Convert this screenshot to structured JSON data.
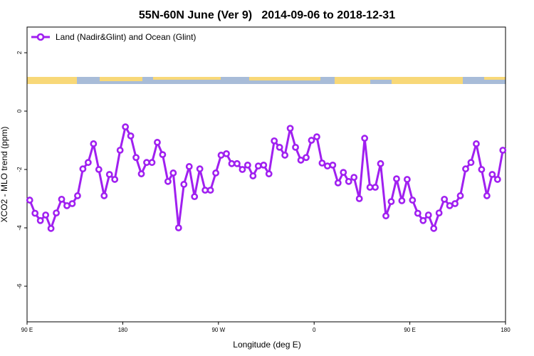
{
  "chart_data": {
    "type": "line",
    "title": "55N-60N June (Ver 9)   2014-09-06 to 2018-12-31",
    "x_label": "Longitude (deg E)",
    "y_label": "XCO2 - MLO trend (ppm)",
    "xlim": [
      90,
      540
    ],
    "xticks": [
      {
        "value": 90,
        "label": "90 E"
      },
      {
        "value": 180,
        "label": "180"
      },
      {
        "value": 270,
        "label": "90 W"
      },
      {
        "value": 360,
        "label": "0"
      },
      {
        "value": 450,
        "label": "90 E"
      },
      {
        "value": 540,
        "label": "180"
      }
    ],
    "ylim": [
      -7.22,
      2.88
    ],
    "yticks": [
      2,
      0,
      -2,
      -4,
      -6
    ],
    "legend_position": "top-left",
    "x": [
      92.5,
      97.5,
      102.5,
      107.5,
      112.5,
      117.5,
      122.5,
      127.5,
      132.5,
      137.5,
      142.5,
      147.5,
      152.5,
      157.5,
      162.5,
      167.5,
      172.5,
      177.5,
      182.5,
      187.5,
      192.5,
      197.5,
      202.5,
      207.5,
      212.5,
      217.5,
      222.5,
      227.5,
      232.5,
      237.5,
      242.5,
      247.5,
      252.5,
      257.5,
      262.5,
      267.5,
      272.5,
      277.5,
      282.5,
      287.5,
      292.5,
      297.5,
      302.5,
      307.5,
      312.5,
      317.5,
      322.5,
      327.5,
      332.5,
      337.5,
      342.5,
      347.5,
      352.5,
      357.5,
      362.5,
      367.5,
      372.5,
      377.5,
      382.5,
      387.5,
      392.5,
      397.5,
      402.5,
      407.5,
      412.5,
      417.5,
      422.5,
      427.5,
      432.5,
      437.5,
      442.5,
      447.5,
      452.5,
      457.5,
      462.5,
      467.5,
      472.5,
      477.5,
      482.5,
      487.5,
      492.5,
      497.5,
      502.5,
      507.5,
      512.5,
      517.5,
      522.5,
      527.5,
      532.5,
      537.5
    ],
    "series": [
      {
        "name": "Land (Nadir&Glint) and Ocean (Glint)",
        "color": "#a020f0",
        "values": [
          -3.05,
          -3.5,
          -3.75,
          -3.56,
          -4.02,
          -3.49,
          -3.02,
          -3.24,
          -3.17,
          -2.9,
          -1.98,
          -1.76,
          -1.12,
          -2.0,
          -2.9,
          -2.17,
          -2.34,
          -1.34,
          -0.54,
          -0.85,
          -1.59,
          -2.15,
          -1.76,
          -1.76,
          -1.07,
          -1.49,
          -2.41,
          -2.12,
          -4.0,
          -2.51,
          -1.9,
          -2.93,
          -1.98,
          -2.71,
          -2.71,
          -2.12,
          -1.51,
          -1.46,
          -1.8,
          -1.8,
          -2.0,
          -1.85,
          -2.22,
          -1.88,
          -1.85,
          -2.15,
          -1.02,
          -1.24,
          -1.51,
          -0.59,
          -1.24,
          -1.68,
          -1.59,
          -1.0,
          -0.88,
          -1.78,
          -1.88,
          -1.85,
          -2.46,
          -2.1,
          -2.41,
          -2.27,
          -3.0,
          -0.93,
          -2.61,
          -2.61,
          -1.8,
          -3.59,
          -3.1,
          -2.32,
          -3.07,
          -2.34,
          -3.05,
          -3.5,
          -3.75,
          -3.56,
          -4.02,
          -3.49,
          -3.02,
          -3.24,
          -3.17,
          -2.9,
          -1.98,
          -1.76,
          -1.12,
          -2.0,
          -2.9,
          -2.17,
          -2.34,
          -1.34
        ]
      }
    ]
  }
}
